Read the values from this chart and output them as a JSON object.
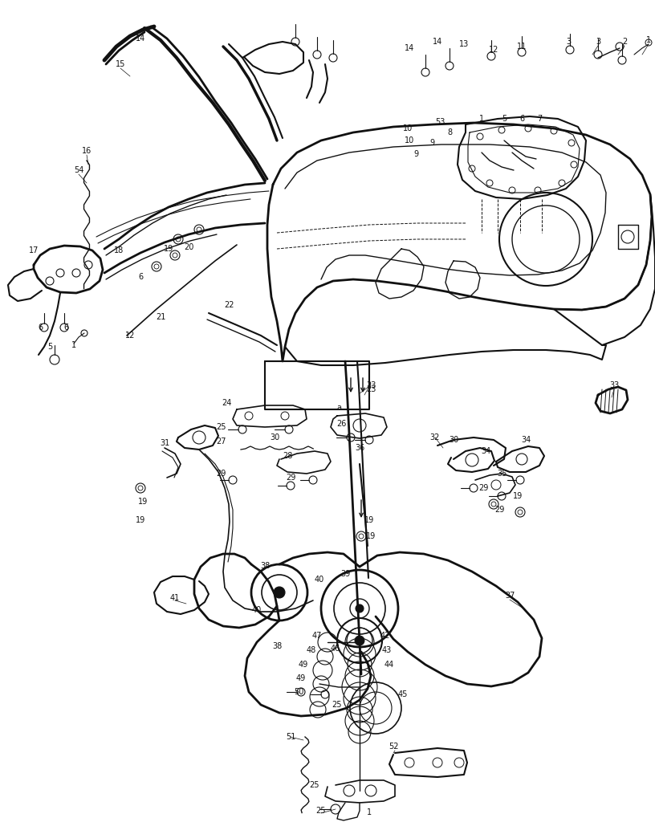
{
  "background_color": "#ffffff",
  "line_color": "#111111",
  "text_color": "#111111",
  "fig_width": 8.16,
  "fig_height": 10.24,
  "dpi": 100
}
